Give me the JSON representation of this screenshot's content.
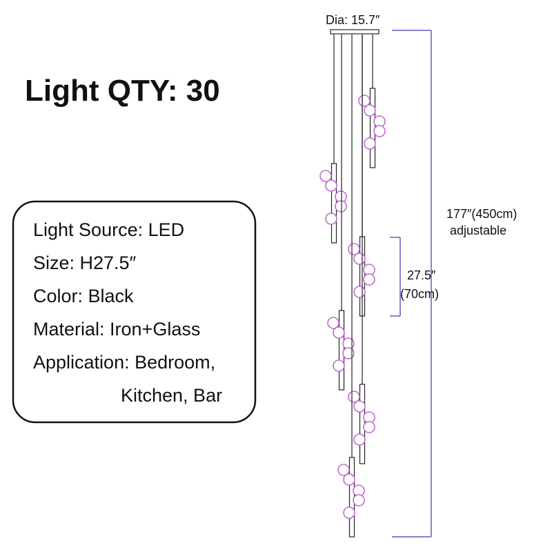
{
  "title": "Light QTY: 30",
  "specs": [
    "Light Source: LED",
    "Size: H27.5″",
    "Color: Black",
    "Material: Iron+Glass",
    "Application: Bedroom,",
    "Kitchen, Bar"
  ],
  "dimensions": {
    "diameter": "Dia: 15.7″",
    "total_height": "177″(450cm)",
    "adjustable": "adjustable",
    "pendant_height": "27.5″",
    "pendant_height_cm": "(70cm)"
  }
}
